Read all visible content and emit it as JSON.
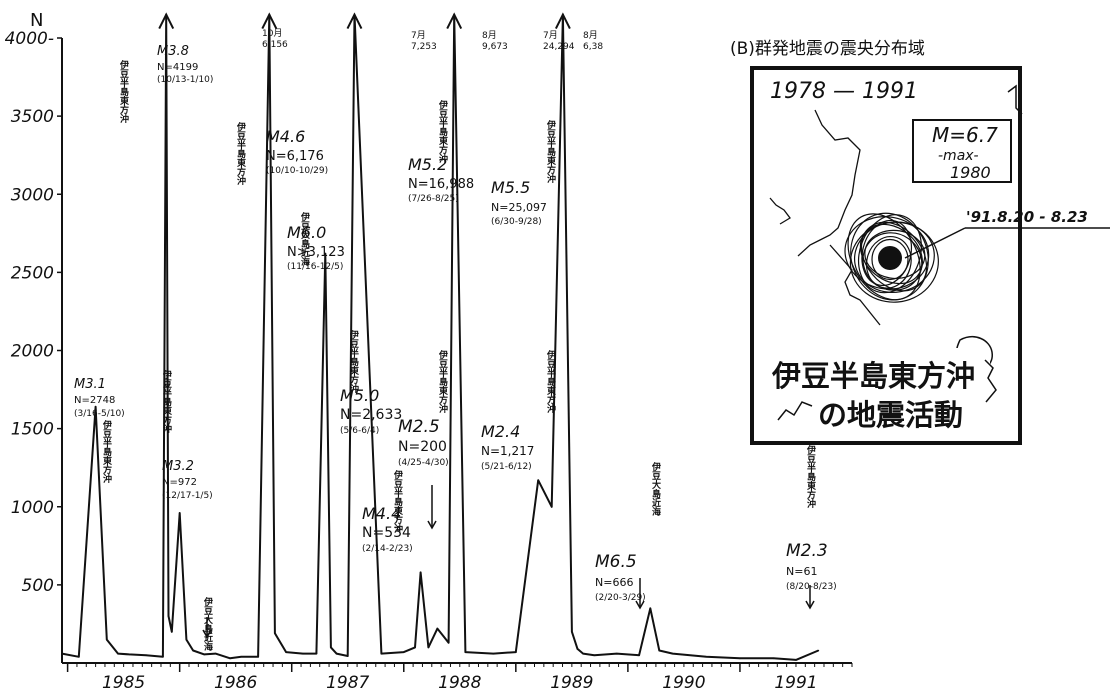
{
  "chart_data": {
    "type": "line",
    "ylabel": "N",
    "ylim": [
      0,
      4000
    ],
    "yticks": [
      {
        "value": 500,
        "label": "500"
      },
      {
        "value": 1000,
        "label": "1000"
      },
      {
        "value": 1500,
        "label": "1500"
      },
      {
        "value": 2000,
        "label": "2000"
      },
      {
        "value": 2500,
        "label": "2500"
      },
      {
        "value": 3000,
        "label": "3000"
      },
      {
        "value": 3500,
        "label": "3500"
      },
      {
        "value": 4000,
        "label": "4000-"
      }
    ],
    "xlim": [
      1984.45,
      1991.5
    ],
    "xticks": [
      {
        "value": 1985,
        "label": "1985"
      },
      {
        "value": 1986,
        "label": "1986"
      },
      {
        "value": 1987,
        "label": "1987"
      },
      {
        "value": 1988,
        "label": "1988"
      },
      {
        "value": 1989,
        "label": "1989"
      },
      {
        "value": 1990,
        "label": "1990"
      },
      {
        "value": 1991,
        "label": "1991"
      }
    ],
    "x": [
      1984.45,
      1984.6,
      1984.75,
      1984.85,
      1984.95,
      1985.05,
      1985.2,
      1985.35,
      1985.38,
      1985.4,
      1985.43,
      1985.5,
      1985.56,
      1985.62,
      1985.72,
      1985.82,
      1985.95,
      1986.05,
      1986.15,
      1986.2,
      1986.3,
      1986.35,
      1986.45,
      1986.6,
      1986.72,
      1986.8,
      1986.85,
      1986.9,
      1987.0,
      1987.06,
      1987.3,
      1987.5,
      1987.6,
      1987.65,
      1987.72,
      1987.8,
      1987.9,
      1987.95,
      1988.05,
      1988.3,
      1988.5,
      1988.7,
      1988.82,
      1988.92,
      1989.0,
      1989.05,
      1989.1,
      1989.2,
      1989.4,
      1989.6,
      1989.7,
      1989.78,
      1989.9,
      1990.2,
      1990.5,
      1990.8,
      1991.0,
      1991.2
    ],
    "y": [
      60,
      40,
      1640,
      150,
      60,
      55,
      50,
      40,
      4150,
      300,
      200,
      960,
      150,
      80,
      55,
      60,
      30,
      40,
      40,
      40,
      4150,
      190,
      70,
      60,
      60,
      2620,
      100,
      60,
      45,
      4150,
      60,
      70,
      100,
      580,
      100,
      220,
      130,
      4150,
      70,
      60,
      70,
      1170,
      1000,
      4150,
      200,
      90,
      60,
      50,
      60,
      50,
      350,
      80,
      60,
      40,
      30,
      30,
      20,
      80
    ],
    "peak_annotations": [
      {
        "lines": [
          "M3.1",
          "N=2748",
          "(3/16-5/10)"
        ]
      },
      {
        "lines": [
          "M3.8",
          "N=4199",
          "(10/13-1/10)"
        ]
      },
      {
        "lines": [
          "M3.2",
          "N=972",
          "(12/17-1/5)"
        ]
      },
      {
        "lines": [
          "M4.6",
          "N=6,176",
          "(10/10-10/29)"
        ]
      },
      {
        "lines": [
          "M6.0",
          "N>3,123",
          "(11/16-12/5)"
        ]
      },
      {
        "lines": [
          "M5.0",
          "N=2,633",
          "(5/6-6/4)"
        ]
      },
      {
        "lines": [
          "M5.2",
          "N=16,988",
          "(7/26-8/25)"
        ]
      },
      {
        "lines": [
          "M2.5",
          "N=200",
          "(4/25-4/30)"
        ]
      },
      {
        "lines": [
          "M4.4",
          "N=534",
          "(2/14-2/23)"
        ]
      },
      {
        "lines": [
          "M5.5",
          "N=25,097",
          "(6/30-9/28)"
        ]
      },
      {
        "lines": [
          "M2.4",
          "N=1,217",
          "(5/21-6/12)"
        ]
      },
      {
        "lines": [
          "M6.5",
          "N=666",
          "(2/20-3/29)"
        ]
      },
      {
        "lines": [
          "M2.3",
          "N=61",
          "(8/20-8/23)"
        ]
      }
    ],
    "offscale_labels": [
      {
        "lines": [
          "10月",
          "6,156"
        ]
      },
      {
        "lines": [
          "7月",
          "7,253"
        ]
      },
      {
        "lines": [
          "8月",
          "9,673"
        ]
      },
      {
        "lines": [
          "7月",
          "24,294"
        ]
      },
      {
        "lines": [
          "8月",
          "6,38"
        ]
      }
    ],
    "region_labels": [
      {
        "text": "伊豆半島東方沖"
      },
      {
        "text": "伊豆半島東方沖"
      },
      {
        "text": "伊豆半島東方沖"
      },
      {
        "text": "伊豆大島近海"
      },
      {
        "text": "伊豆半島東方沖"
      },
      {
        "text": "伊豆大島近海"
      },
      {
        "text": "伊豆半島東方沖"
      },
      {
        "text": "伊豆半島東方沖"
      },
      {
        "text": "伊豆半島東方沖"
      },
      {
        "text": "伊豆半島東方沖"
      },
      {
        "text": "伊豆半島東方沖"
      },
      {
        "text": "伊豆半島東方沖"
      },
      {
        "text": "伊豆大島近海"
      },
      {
        "text": "伊豆半島東方沖"
      }
    ]
  },
  "inset": {
    "title": "(B)群発地震の震央分布域",
    "period": "1978 — 1991",
    "max_magnitude": "M=6.7",
    "max_label": "-max-",
    "max_year": "1980",
    "recent_date": "'91.8.20 - 8.23",
    "caption_line1": "伊豆半島東方沖",
    "caption_line2": "の地震活動"
  }
}
